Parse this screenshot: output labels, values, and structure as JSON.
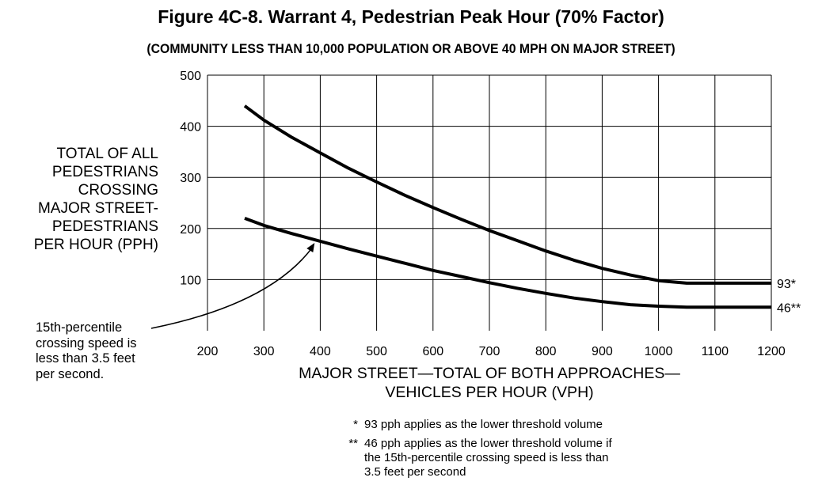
{
  "header": {
    "title": "Figure 4C-8.  Warrant 4, Pedestrian Peak Hour (70% Factor)",
    "subtitle": "(COMMUNITY LESS THAN 10,000 POPULATION OR ABOVE 40 MPH ON MAJOR STREET)"
  },
  "chart_data": {
    "type": "line",
    "xlim": [
      200,
      1200
    ],
    "ylim": [
      0,
      500
    ],
    "x_ticks": [
      200,
      300,
      400,
      500,
      600,
      700,
      800,
      900,
      1000,
      1100,
      1200
    ],
    "y_ticks": [
      100,
      200,
      300,
      400,
      500
    ],
    "grid": true,
    "ylabel_lines": [
      "TOTAL OF ALL",
      "PEDESTRIANS",
      "CROSSING",
      "MAJOR STREET-",
      "PEDESTRIANS",
      "PER HOUR (PPH)"
    ],
    "xlabel_lines": [
      "MAJOR STREET—TOTAL OF BOTH APPROACHES—",
      "VEHICLES PER HOUR (VPH)"
    ],
    "series": [
      {
        "end_label": "93*",
        "x": [
          266,
          300,
          350,
          400,
          450,
          500,
          550,
          600,
          650,
          700,
          750,
          800,
          850,
          900,
          950,
          1000,
          1050,
          1100,
          1150,
          1200
        ],
        "y": [
          440,
          412,
          378,
          348,
          318,
          291,
          265,
          241,
          218,
          196,
          176,
          156,
          138,
          122,
          109,
          98,
          93,
          93,
          93,
          93
        ]
      },
      {
        "end_label": "46**",
        "x": [
          266,
          300,
          350,
          400,
          450,
          500,
          550,
          600,
          650,
          700,
          750,
          800,
          850,
          900,
          950,
          1000,
          1050,
          1100,
          1150,
          1200
        ],
        "y": [
          220,
          206,
          190,
          175,
          160,
          146,
          132,
          118,
          106,
          94,
          83,
          73,
          64,
          57,
          51,
          48,
          46,
          46,
          46,
          46
        ]
      }
    ],
    "annotation": {
      "lines": [
        "15th-percentile",
        "crossing speed is",
        "less than 3.5 feet",
        "per second."
      ],
      "arrow_to": {
        "x": 390,
        "y": 175
      }
    }
  },
  "footnotes": [
    {
      "mark": "*",
      "lines": [
        "93 pph applies as the lower threshold volume"
      ]
    },
    {
      "mark": "**",
      "lines": [
        "46 pph applies as the lower threshold volume if",
        "the 15th-percentile crossing speed is less than",
        "3.5 feet per second"
      ]
    }
  ]
}
